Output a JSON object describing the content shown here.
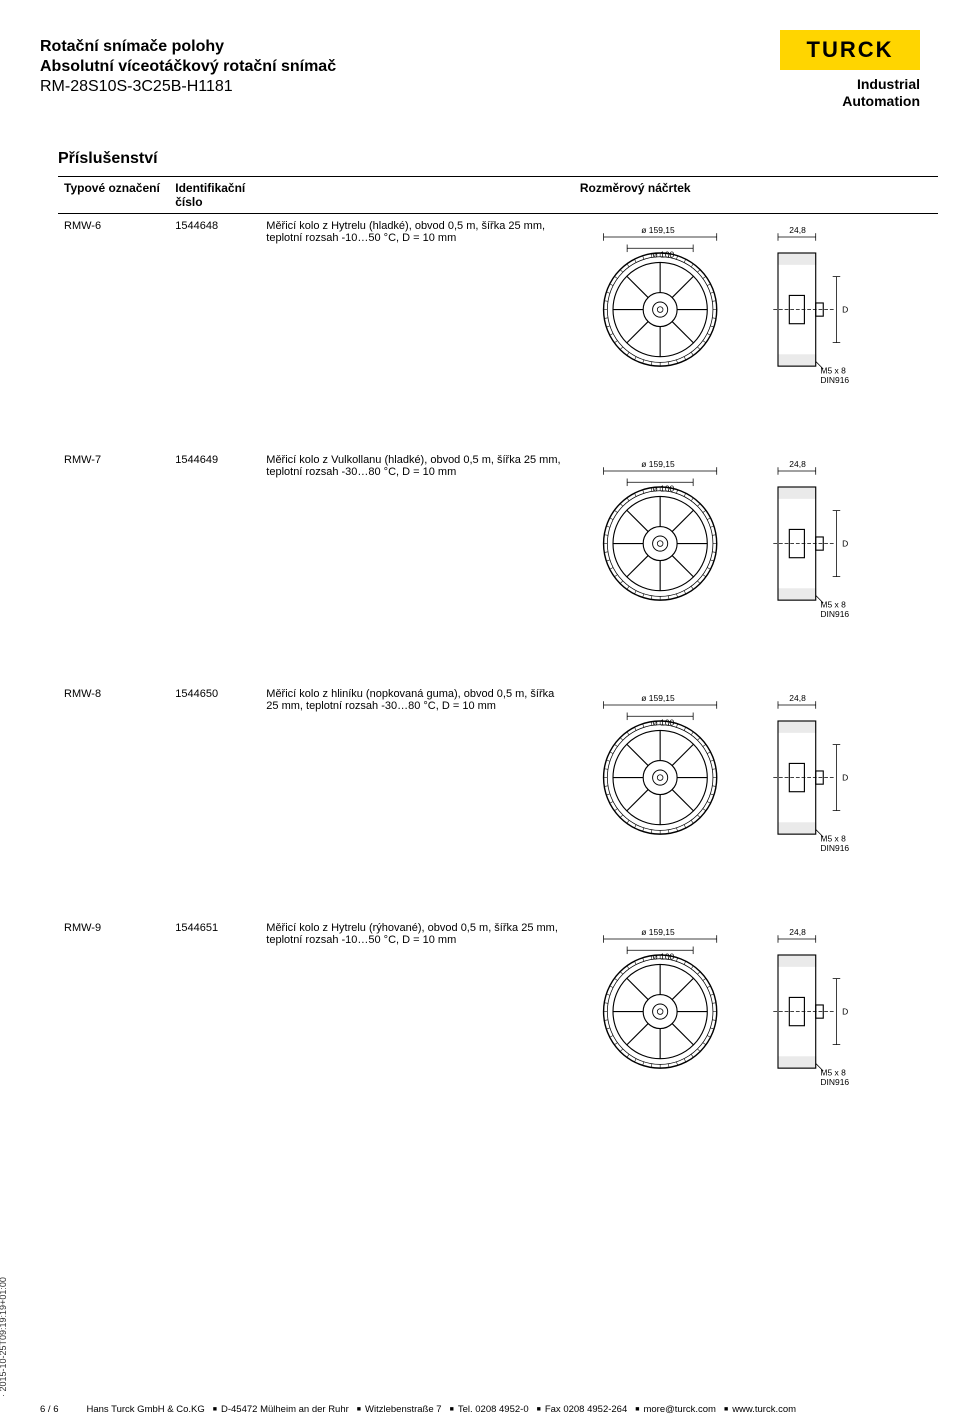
{
  "header": {
    "line1": "Rotační snímače polohy",
    "line2": "Absolutní víceotáčkový rotační snímač",
    "line3": "RM-28S10S-3C25B-H1181",
    "logo": "TURCK",
    "tagline1": "Industrial",
    "tagline2": "Automation"
  },
  "section_title": "Příslušenství",
  "table": {
    "headers": {
      "type": "Typové označení",
      "id_line1": "Identifikační",
      "id_line2": "číslo",
      "drawing": "Rozměrový náčrtek"
    },
    "rows": [
      {
        "type": "RMW-6",
        "id": "1544648",
        "desc": "Měřicí kolo z Hytrelu (hladké), obvod 0,5 m, šířka 25 mm, teplotní rozsah -10…50 °C, D = 10 mm"
      },
      {
        "type": "RMW-7",
        "id": "1544649",
        "desc": "Měřicí kolo z Vulkollanu (hladké), obvod 0,5 m, šířka 25 mm, teplotní rozsah -30…80 °C, D = 10 mm"
      },
      {
        "type": "RMW-8",
        "id": "1544650",
        "desc": "Měřicí kolo z hliníku (nopkovaná guma), obvod 0,5 m, šířka 25 mm, teplotní rozsah -30…80 °C, D = 10 mm"
      },
      {
        "type": "RMW-9",
        "id": "1544651",
        "desc": "Měřicí kolo z Hytrelu (rýhované), obvod 0,5 m, šířka 25 mm, teplotní rozsah -10…50 °C, D = 10 mm"
      }
    ]
  },
  "drawing": {
    "dia_outer": "ø 159,15",
    "dia_inner": "ø 100",
    "width": "24,8",
    "d_label": "D",
    "screw": "M5 x 8",
    "din": "DIN916",
    "stroke": "#000000",
    "fill": "#ffffff"
  },
  "timestamp": "· 2015-10-25T09:19:19+01:00",
  "footer": {
    "page": "6 / 6",
    "company": "Hans Turck GmbH & Co.KG",
    "addr": "D-45472 Mülheim an der Ruhr",
    "street": "Witzlebenstraße 7",
    "tel": "Tel. 0208 4952-0",
    "fax": "Fax 0208 4952-264",
    "email": "more@turck.com",
    "web": "www.turck.com"
  },
  "colors": {
    "brand_yellow": "#ffd500",
    "text": "#000000",
    "bg": "#ffffff"
  }
}
